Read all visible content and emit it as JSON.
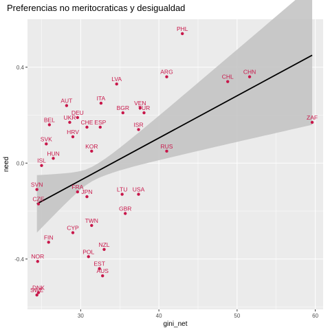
{
  "title": "Preferencias no meritocraticas y desigualdad",
  "chart_data": {
    "type": "scatter",
    "title": "Preferencias no meritocraticas y desigualdad",
    "xlabel": "gini_net",
    "ylabel": "need",
    "xlim": [
      23.2,
      61.0
    ],
    "ylim": [
      -0.61,
      0.6
    ],
    "x_ticks": [
      30,
      40,
      50,
      60
    ],
    "x_tick_labels": [
      "30",
      "40",
      "50",
      "60"
    ],
    "y_ticks": [
      -0.4,
      0.0,
      0.4
    ],
    "y_tick_labels": [
      "-0.4",
      "0.0",
      "0.4"
    ],
    "grid": true,
    "point_color": "#c8174a",
    "line_color": "#000000",
    "band_color": "#c4c4c4",
    "panel_color": "#ebebeb",
    "points": [
      {
        "label": "PHL",
        "x": 43.0,
        "y": 0.54
      },
      {
        "label": "ARG",
        "x": 41.0,
        "y": 0.36
      },
      {
        "label": "CHL",
        "x": 48.8,
        "y": 0.34
      },
      {
        "label": "CHN",
        "x": 51.6,
        "y": 0.36
      },
      {
        "label": "ZAF",
        "x": 59.6,
        "y": 0.17
      },
      {
        "label": "LVA",
        "x": 34.6,
        "y": 0.33
      },
      {
        "label": "VEN",
        "x": 37.6,
        "y": 0.23
      },
      {
        "label": "AUT",
        "x": 28.2,
        "y": 0.24
      },
      {
        "label": "ITA",
        "x": 32.6,
        "y": 0.25
      },
      {
        "label": "DEU",
        "x": 29.6,
        "y": 0.19
      },
      {
        "label": "BGR",
        "x": 35.4,
        "y": 0.21
      },
      {
        "label": "TUR",
        "x": 38.1,
        "y": 0.21
      },
      {
        "label": "BEL",
        "x": 26.0,
        "y": 0.16
      },
      {
        "label": "UKR",
        "x": 28.6,
        "y": 0.17
      },
      {
        "label": "CHE",
        "x": 30.8,
        "y": 0.15
      },
      {
        "label": "ESP",
        "x": 32.5,
        "y": 0.15
      },
      {
        "label": "ISR",
        "x": 37.4,
        "y": 0.14
      },
      {
        "label": "SVK",
        "x": 25.6,
        "y": 0.08
      },
      {
        "label": "HRV",
        "x": 29.0,
        "y": 0.11
      },
      {
        "label": "RUS",
        "x": 41.0,
        "y": 0.05
      },
      {
        "label": "KOR",
        "x": 31.4,
        "y": 0.05
      },
      {
        "label": "HUN",
        "x": 26.5,
        "y": 0.02
      },
      {
        "label": "ISL",
        "x": 25.0,
        "y": -0.01
      },
      {
        "label": "SVN",
        "x": 24.4,
        "y": -0.11
      },
      {
        "label": "FRA",
        "x": 29.6,
        "y": -0.12
      },
      {
        "label": "CZE",
        "x": 24.6,
        "y": -0.17
      },
      {
        "label": "LTU",
        "x": 35.3,
        "y": -0.13
      },
      {
        "label": "USA",
        "x": 37.4,
        "y": -0.13
      },
      {
        "label": "JPN",
        "x": 30.8,
        "y": -0.14
      },
      {
        "label": "GBR",
        "x": 35.7,
        "y": -0.21
      },
      {
        "label": "TWN",
        "x": 31.4,
        "y": -0.26
      },
      {
        "label": "FIN",
        "x": 25.9,
        "y": -0.33
      },
      {
        "label": "CYP",
        "x": 29.0,
        "y": -0.29
      },
      {
        "label": "NZL",
        "x": 33.0,
        "y": -0.36
      },
      {
        "label": "POL",
        "x": 31.0,
        "y": -0.39
      },
      {
        "label": "NOR",
        "x": 24.5,
        "y": -0.41
      },
      {
        "label": "EST",
        "x": 32.4,
        "y": -0.44
      },
      {
        "label": "AUS",
        "x": 32.8,
        "y": -0.47
      },
      {
        "label": "DNK",
        "x": 24.6,
        "y": -0.54
      },
      {
        "label": "SWE",
        "x": 24.4,
        "y": -0.55
      }
    ],
    "regression": {
      "x": [
        24.4,
        59.6
      ],
      "y": [
        -0.17,
        0.45
      ],
      "band_lower": [
        -0.29,
        0.15
      ],
      "band_upper": [
        -0.05,
        0.73
      ]
    }
  }
}
